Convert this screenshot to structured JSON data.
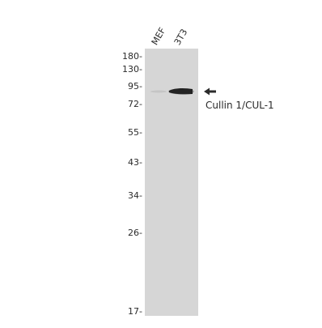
{
  "lanes": [
    "MEF",
    "3T3"
  ],
  "markers": [
    "180-",
    "130-",
    "95-",
    "72-",
    "55-",
    "43-",
    "34-",
    "26-",
    "17-"
  ],
  "target": "Cullin 1/CUL-1",
  "colors": {
    "membrane": "#d6d6d6",
    "band": "#1b1b1b",
    "text": "#2b2b2b"
  }
}
